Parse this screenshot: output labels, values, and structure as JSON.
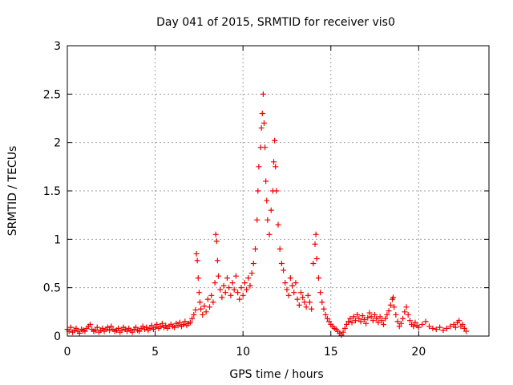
{
  "chart_data": {
    "type": "scatter",
    "title": "Day 041 of 2015, SRMTID for receiver vis0",
    "xlabel": "GPS time / hours",
    "ylabel": "SRMTID / TECUs",
    "xlim": [
      0,
      24
    ],
    "ylim": [
      0,
      3
    ],
    "xticks": [
      0,
      5,
      10,
      15,
      20
    ],
    "yticks": [
      0,
      0.5,
      1,
      1.5,
      2,
      2.5,
      3
    ],
    "xtick_labels": [
      "0",
      "5",
      "10",
      "15",
      "20"
    ],
    "ytick_labels": [
      "0",
      "0.5",
      "1",
      "1.5",
      "2",
      "2.5",
      "3"
    ],
    "grid": true,
    "marker": "+",
    "color": "#ee0000",
    "series": [
      {
        "name": "SRMTID",
        "points": [
          [
            0.0,
            0.07
          ],
          [
            0.1,
            0.05
          ],
          [
            0.2,
            0.09
          ],
          [
            0.3,
            0.04
          ],
          [
            0.4,
            0.06
          ],
          [
            0.5,
            0.08
          ],
          [
            0.6,
            0.05
          ],
          [
            0.7,
            0.03
          ],
          [
            0.8,
            0.07
          ],
          [
            0.9,
            0.06
          ],
          [
            1.0,
            0.05
          ],
          [
            1.1,
            0.08
          ],
          [
            1.2,
            0.1
          ],
          [
            1.3,
            0.12
          ],
          [
            1.4,
            0.07
          ],
          [
            1.5,
            0.05
          ],
          [
            1.6,
            0.06
          ],
          [
            1.7,
            0.09
          ],
          [
            1.8,
            0.04
          ],
          [
            1.9,
            0.06
          ],
          [
            2.0,
            0.08
          ],
          [
            2.1,
            0.05
          ],
          [
            2.2,
            0.07
          ],
          [
            2.3,
            0.09
          ],
          [
            2.4,
            0.06
          ],
          [
            2.5,
            0.1
          ],
          [
            2.6,
            0.07
          ],
          [
            2.7,
            0.05
          ],
          [
            2.8,
            0.06
          ],
          [
            2.9,
            0.08
          ],
          [
            3.0,
            0.04
          ],
          [
            3.1,
            0.06
          ],
          [
            3.2,
            0.09
          ],
          [
            3.3,
            0.07
          ],
          [
            3.4,
            0.05
          ],
          [
            3.5,
            0.08
          ],
          [
            3.6,
            0.06
          ],
          [
            3.7,
            0.04
          ],
          [
            3.8,
            0.07
          ],
          [
            3.9,
            0.09
          ],
          [
            4.0,
            0.06
          ],
          [
            4.1,
            0.05
          ],
          [
            4.2,
            0.08
          ],
          [
            4.3,
            0.1
          ],
          [
            4.4,
            0.07
          ],
          [
            4.5,
            0.09
          ],
          [
            4.6,
            0.06
          ],
          [
            4.7,
            0.08
          ],
          [
            4.8,
            0.11
          ],
          [
            4.9,
            0.07
          ],
          [
            5.0,
            0.09
          ],
          [
            5.1,
            0.12
          ],
          [
            5.2,
            0.08
          ],
          [
            5.3,
            0.1
          ],
          [
            5.4,
            0.13
          ],
          [
            5.5,
            0.09
          ],
          [
            5.6,
            0.11
          ],
          [
            5.7,
            0.08
          ],
          [
            5.8,
            0.1
          ],
          [
            5.9,
            0.12
          ],
          [
            6.0,
            0.1
          ],
          [
            6.1,
            0.09
          ],
          [
            6.2,
            0.13
          ],
          [
            6.3,
            0.11
          ],
          [
            6.4,
            0.14
          ],
          [
            6.5,
            0.1
          ],
          [
            6.6,
            0.12
          ],
          [
            6.7,
            0.15
          ],
          [
            6.8,
            0.11
          ],
          [
            6.9,
            0.13
          ],
          [
            7.0,
            0.14
          ],
          [
            7.1,
            0.18
          ],
          [
            7.2,
            0.22
          ],
          [
            7.3,
            0.27
          ],
          [
            7.35,
            0.85
          ],
          [
            7.4,
            0.78
          ],
          [
            7.45,
            0.6
          ],
          [
            7.5,
            0.45
          ],
          [
            7.55,
            0.35
          ],
          [
            7.6,
            0.28
          ],
          [
            7.7,
            0.22
          ],
          [
            7.8,
            0.31
          ],
          [
            7.9,
            0.25
          ],
          [
            8.0,
            0.38
          ],
          [
            8.1,
            0.3
          ],
          [
            8.2,
            0.42
          ],
          [
            8.3,
            0.35
          ],
          [
            8.4,
            0.55
          ],
          [
            8.45,
            1.05
          ],
          [
            8.5,
            0.98
          ],
          [
            8.55,
            0.78
          ],
          [
            8.6,
            0.62
          ],
          [
            8.7,
            0.48
          ],
          [
            8.8,
            0.4
          ],
          [
            8.9,
            0.52
          ],
          [
            9.0,
            0.45
          ],
          [
            9.1,
            0.6
          ],
          [
            9.2,
            0.5
          ],
          [
            9.3,
            0.42
          ],
          [
            9.4,
            0.55
          ],
          [
            9.5,
            0.48
          ],
          [
            9.6,
            0.62
          ],
          [
            9.7,
            0.45
          ],
          [
            9.8,
            0.38
          ],
          [
            9.9,
            0.5
          ],
          [
            10.0,
            0.42
          ],
          [
            10.1,
            0.55
          ],
          [
            10.2,
            0.48
          ],
          [
            10.3,
            0.6
          ],
          [
            10.4,
            0.52
          ],
          [
            10.5,
            0.65
          ],
          [
            10.6,
            0.75
          ],
          [
            10.7,
            0.9
          ],
          [
            10.8,
            1.2
          ],
          [
            10.85,
            1.5
          ],
          [
            10.9,
            1.75
          ],
          [
            11.0,
            1.95
          ],
          [
            11.05,
            2.15
          ],
          [
            11.1,
            2.3
          ],
          [
            11.15,
            2.5
          ],
          [
            11.2,
            2.2
          ],
          [
            11.25,
            1.95
          ],
          [
            11.3,
            1.6
          ],
          [
            11.35,
            1.4
          ],
          [
            11.4,
            1.2
          ],
          [
            11.5,
            1.05
          ],
          [
            11.6,
            1.3
          ],
          [
            11.7,
            1.5
          ],
          [
            11.75,
            1.8
          ],
          [
            11.8,
            2.02
          ],
          [
            11.85,
            1.75
          ],
          [
            11.9,
            1.5
          ],
          [
            12.0,
            1.15
          ],
          [
            12.1,
            0.9
          ],
          [
            12.2,
            0.75
          ],
          [
            12.3,
            0.68
          ],
          [
            12.4,
            0.55
          ],
          [
            12.5,
            0.48
          ],
          [
            12.6,
            0.42
          ],
          [
            12.7,
            0.6
          ],
          [
            12.8,
            0.52
          ],
          [
            12.9,
            0.45
          ],
          [
            13.0,
            0.55
          ],
          [
            13.1,
            0.38
          ],
          [
            13.2,
            0.32
          ],
          [
            13.3,
            0.45
          ],
          [
            13.4,
            0.4
          ],
          [
            13.5,
            0.35
          ],
          [
            13.6,
            0.3
          ],
          [
            13.7,
            0.42
          ],
          [
            13.8,
            0.35
          ],
          [
            13.9,
            0.28
          ],
          [
            14.0,
            0.75
          ],
          [
            14.1,
            0.95
          ],
          [
            14.15,
            1.05
          ],
          [
            14.2,
            0.8
          ],
          [
            14.3,
            0.6
          ],
          [
            14.4,
            0.45
          ],
          [
            14.5,
            0.35
          ],
          [
            14.6,
            0.28
          ],
          [
            14.7,
            0.22
          ],
          [
            14.8,
            0.18
          ],
          [
            14.9,
            0.15
          ],
          [
            15.0,
            0.12
          ],
          [
            15.1,
            0.1
          ],
          [
            15.2,
            0.08
          ],
          [
            15.3,
            0.07
          ],
          [
            15.4,
            0.05
          ],
          [
            15.5,
            0.03
          ],
          [
            15.6,
            0.01
          ],
          [
            15.7,
            0.04
          ],
          [
            15.8,
            0.08
          ],
          [
            15.9,
            0.12
          ],
          [
            16.0,
            0.15
          ],
          [
            16.1,
            0.18
          ],
          [
            16.2,
            0.14
          ],
          [
            16.3,
            0.2
          ],
          [
            16.4,
            0.16
          ],
          [
            16.5,
            0.22
          ],
          [
            16.6,
            0.18
          ],
          [
            16.7,
            0.15
          ],
          [
            16.8,
            0.21
          ],
          [
            16.9,
            0.17
          ],
          [
            17.0,
            0.13
          ],
          [
            17.1,
            0.19
          ],
          [
            17.2,
            0.24
          ],
          [
            17.3,
            0.2
          ],
          [
            17.4,
            0.16
          ],
          [
            17.5,
            0.22
          ],
          [
            17.6,
            0.18
          ],
          [
            17.7,
            0.14
          ],
          [
            17.8,
            0.2
          ],
          [
            17.9,
            0.16
          ],
          [
            18.0,
            0.12
          ],
          [
            18.1,
            0.18
          ],
          [
            18.2,
            0.22
          ],
          [
            18.3,
            0.26
          ],
          [
            18.4,
            0.32
          ],
          [
            18.5,
            0.38
          ],
          [
            18.55,
            0.4
          ],
          [
            18.6,
            0.3
          ],
          [
            18.7,
            0.22
          ],
          [
            18.8,
            0.15
          ],
          [
            18.9,
            0.1
          ],
          [
            19.0,
            0.13
          ],
          [
            19.1,
            0.18
          ],
          [
            19.2,
            0.25
          ],
          [
            19.3,
            0.3
          ],
          [
            19.4,
            0.22
          ],
          [
            19.5,
            0.16
          ],
          [
            19.6,
            0.12
          ],
          [
            19.7,
            0.1
          ],
          [
            19.8,
            0.14
          ],
          [
            19.9,
            0.11
          ],
          [
            20.0,
            0.09
          ],
          [
            20.2,
            0.12
          ],
          [
            20.4,
            0.15
          ],
          [
            20.6,
            0.1
          ],
          [
            20.8,
            0.08
          ],
          [
            21.0,
            0.07
          ],
          [
            21.2,
            0.09
          ],
          [
            21.4,
            0.06
          ],
          [
            21.6,
            0.08
          ],
          [
            21.8,
            0.1
          ],
          [
            22.0,
            0.12
          ],
          [
            22.1,
            0.09
          ],
          [
            22.2,
            0.14
          ],
          [
            22.3,
            0.16
          ],
          [
            22.4,
            0.1
          ],
          [
            22.5,
            0.12
          ],
          [
            22.6,
            0.08
          ],
          [
            22.7,
            0.05
          ]
        ]
      }
    ]
  }
}
